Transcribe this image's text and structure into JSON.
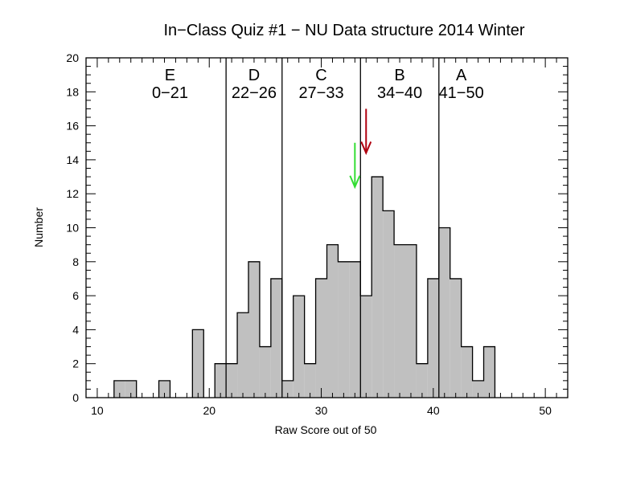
{
  "chart_data": {
    "type": "bar",
    "title": "In−Class Quiz #1  −  NU Data structure 2014 Winter",
    "xlabel": "Raw Score out of 50",
    "ylabel": "Number",
    "xlim": [
      9,
      52
    ],
    "ylim": [
      0,
      20
    ],
    "x_ticks": [
      "10",
      "20",
      "30",
      "40",
      "50"
    ],
    "y_ticks": [
      "0",
      "2",
      "4",
      "6",
      "8",
      "10",
      "12",
      "14",
      "16",
      "18",
      "20"
    ],
    "x": [
      12,
      13,
      16,
      19,
      21,
      22,
      23,
      24,
      25,
      26,
      27,
      28,
      29,
      30,
      31,
      32,
      33,
      34,
      35,
      36,
      37,
      38,
      39,
      40,
      41,
      42,
      43,
      44,
      45
    ],
    "values": [
      1,
      1,
      1,
      4,
      2,
      2,
      5,
      8,
      3,
      7,
      1,
      6,
      2,
      7,
      9,
      8,
      8,
      6,
      13,
      11,
      9,
      9,
      2,
      7,
      10,
      7,
      3,
      1,
      3
    ],
    "grade_boundaries": [
      21.5,
      26.5,
      33.5,
      40.5
    ],
    "grades": [
      {
        "letter": "E",
        "range": "0−21",
        "center": 16.5
      },
      {
        "letter": "D",
        "range": "22−26",
        "center": 24
      },
      {
        "letter": "C",
        "range": "27−33",
        "center": 30
      },
      {
        "letter": "B",
        "range": "34−40",
        "center": 37
      },
      {
        "letter": "A",
        "range": "41−50",
        "center": 42.5
      }
    ],
    "arrows": [
      {
        "name": "red",
        "x": 34.0,
        "y_start": 17.0,
        "y_end": 14.4,
        "color": "#b00010"
      },
      {
        "name": "green",
        "x": 33.0,
        "y_start": 15.0,
        "y_end": 12.4,
        "color": "#33dd33"
      }
    ],
    "bar_color": "#c0c0c0",
    "grid": false
  }
}
